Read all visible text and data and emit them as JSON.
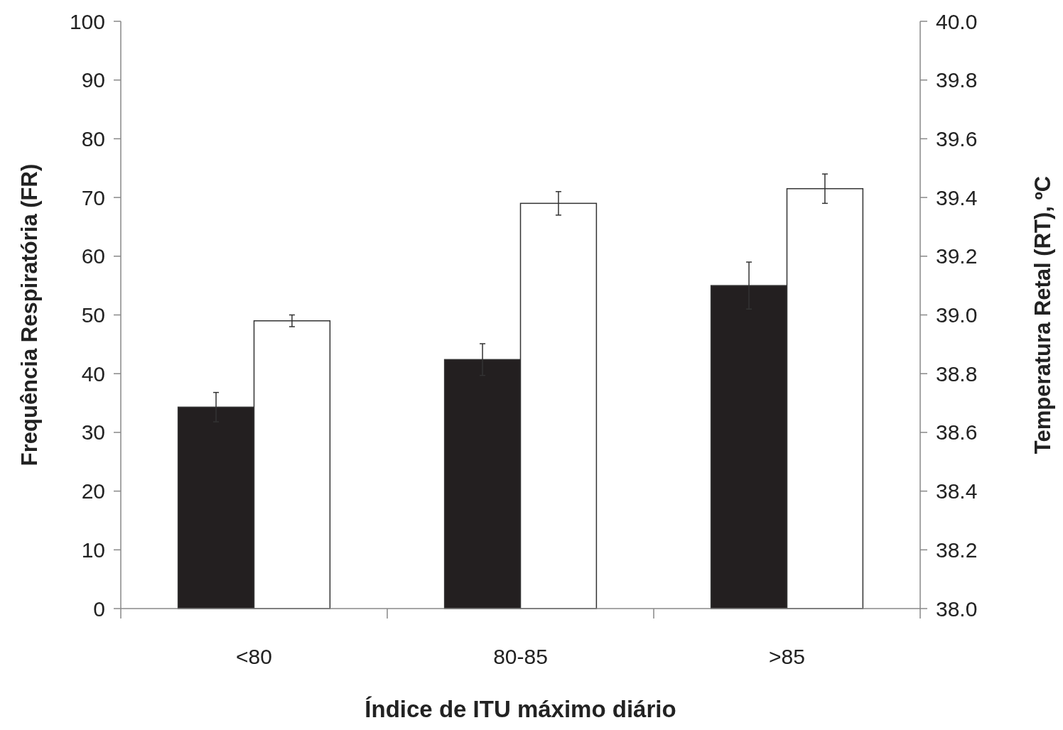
{
  "chart_data": {
    "type": "bar",
    "xlabel": "Índice de ITU máximo diário",
    "ylabel": "Frequência Respiratória (FR)",
    "y2label": "Temperatura Retal (RT), ºC",
    "categories": [
      "<80",
      "80-85",
      ">85"
    ],
    "series": [
      {
        "color": "#231f20",
        "values": [
          34.3,
          42.4,
          55.0
        ],
        "errors": [
          2.5,
          2.7,
          4.0
        ]
      },
      {
        "color": "#ffffff",
        "axis": "y2",
        "values": [
          38.98,
          39.38,
          39.43
        ],
        "errors": [
          0.02,
          0.04,
          0.05
        ]
      }
    ],
    "ylim": [
      0,
      100
    ],
    "yticks": [
      0,
      10,
      20,
      30,
      40,
      50,
      60,
      70,
      80,
      90,
      100
    ],
    "y2lim": [
      38,
      40
    ],
    "y2ticks": [
      {
        "value": 38,
        "label": "38.0"
      },
      {
        "value": 38.2,
        "label": "38.2"
      },
      {
        "value": 38.4,
        "label": "38.4"
      },
      {
        "value": 38.6,
        "label": "38.6"
      },
      {
        "value": 38.8,
        "label": "38.8"
      },
      {
        "value": 39,
        "label": "39.0"
      },
      {
        "value": 39.2,
        "label": "39.2"
      },
      {
        "value": 39.4,
        "label": "39.4"
      },
      {
        "value": 39.6,
        "label": "39.6"
      },
      {
        "value": 39.8,
        "label": "39.8"
      },
      {
        "value": 40,
        "label": "40.0"
      }
    ],
    "grid": false
  }
}
